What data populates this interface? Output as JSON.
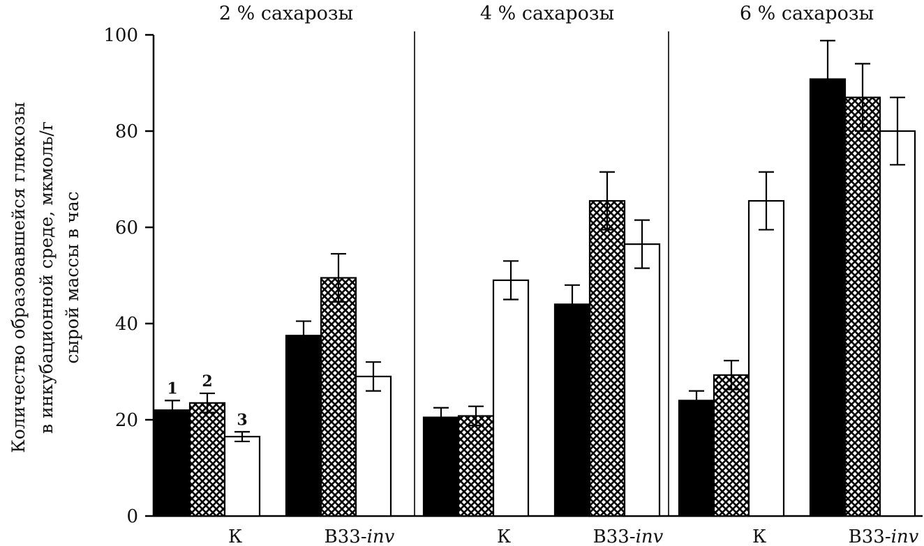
{
  "chart_data": {
    "type": "bar",
    "ylabel_lines": [
      "Количество образовавшейся глюкозы",
      "в инкубационной среде, мкмоль/г",
      "сырой массы в час"
    ],
    "ylim": [
      0,
      100
    ],
    "yticks": [
      0,
      20,
      40,
      60,
      80,
      100
    ],
    "grid": false,
    "legend": "numbers above first group",
    "series": [
      {
        "name": "1",
        "fill": "solid-black",
        "color": "#000000"
      },
      {
        "name": "2",
        "fill": "crosshatch",
        "color": "#000000"
      },
      {
        "name": "3",
        "fill": "white",
        "color": "#ffffff"
      }
    ],
    "panels": [
      {
        "title": "2 % сахарозы",
        "groups": [
          {
            "label": "К",
            "values": [
              22,
              23.5,
              16.5
            ],
            "errors": [
              2,
              2,
              1
            ]
          },
          {
            "label": "В33-inv",
            "label_prefix": "В33-",
            "label_italic": "inv",
            "values": [
              37.5,
              49.5,
              29
            ],
            "errors": [
              3,
              5,
              3
            ]
          }
        ]
      },
      {
        "title": "4 % сахарозы",
        "groups": [
          {
            "label": "К",
            "values": [
              20.5,
              20.8,
              49
            ],
            "errors": [
              2,
              2,
              4
            ]
          },
          {
            "label": "В33-inv",
            "label_prefix": "В33-",
            "label_italic": "inv",
            "values": [
              44,
              65.5,
              56.5
            ],
            "errors": [
              4,
              6,
              5
            ]
          }
        ]
      },
      {
        "title": "6 % сахарозы",
        "groups": [
          {
            "label": "К",
            "values": [
              24,
              29.3,
              65.5
            ],
            "errors": [
              2,
              3,
              6
            ]
          },
          {
            "label": "В33-inv",
            "label_prefix": "В33-",
            "label_italic": "inv",
            "values": [
              90.8,
              87,
              80
            ],
            "errors": [
              8,
              7,
              7
            ]
          }
        ]
      }
    ]
  }
}
